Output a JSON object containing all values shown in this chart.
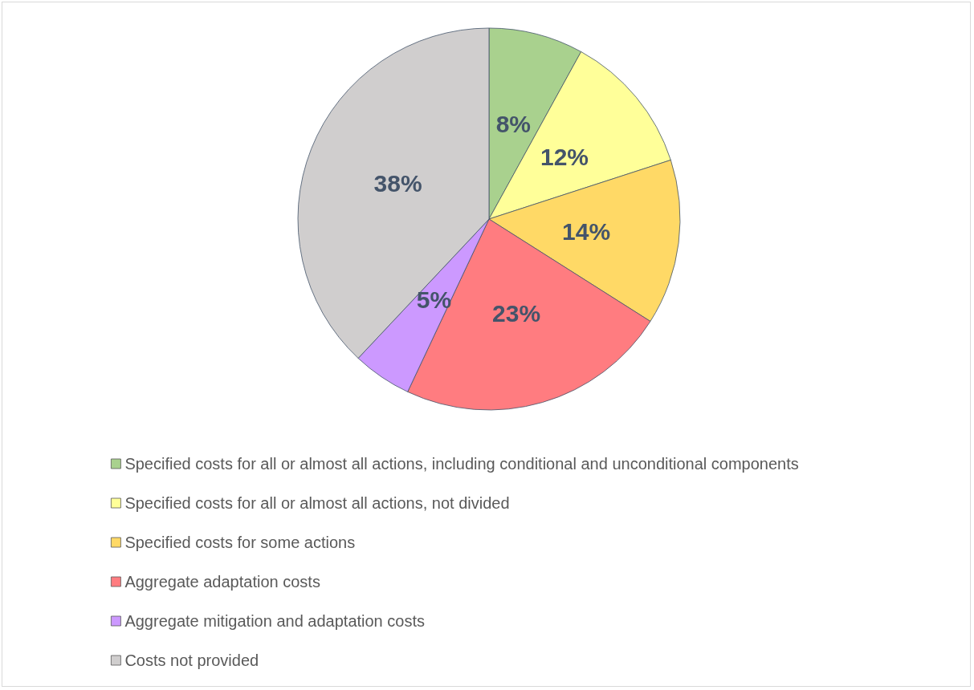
{
  "chart_data": {
    "type": "pie",
    "categories": [
      "Specified costs for all or almost all actions, including conditional and unconditional components",
      "Specified costs for all or almost all actions, not divided",
      "Specified costs for some actions",
      "Aggregate adaptation costs",
      "Aggregate mitigation and adaptation costs",
      "Costs not provided"
    ],
    "values": [
      8,
      12,
      14,
      23,
      5,
      38
    ],
    "value_labels": [
      "8%",
      "12%",
      "14%",
      "23%",
      "5%",
      "38%"
    ],
    "colors": [
      "#a9d18e",
      "#ffff99",
      "#ffd966",
      "#ff7c80",
      "#cc99ff",
      "#d0cece"
    ],
    "legend": "bottom"
  }
}
